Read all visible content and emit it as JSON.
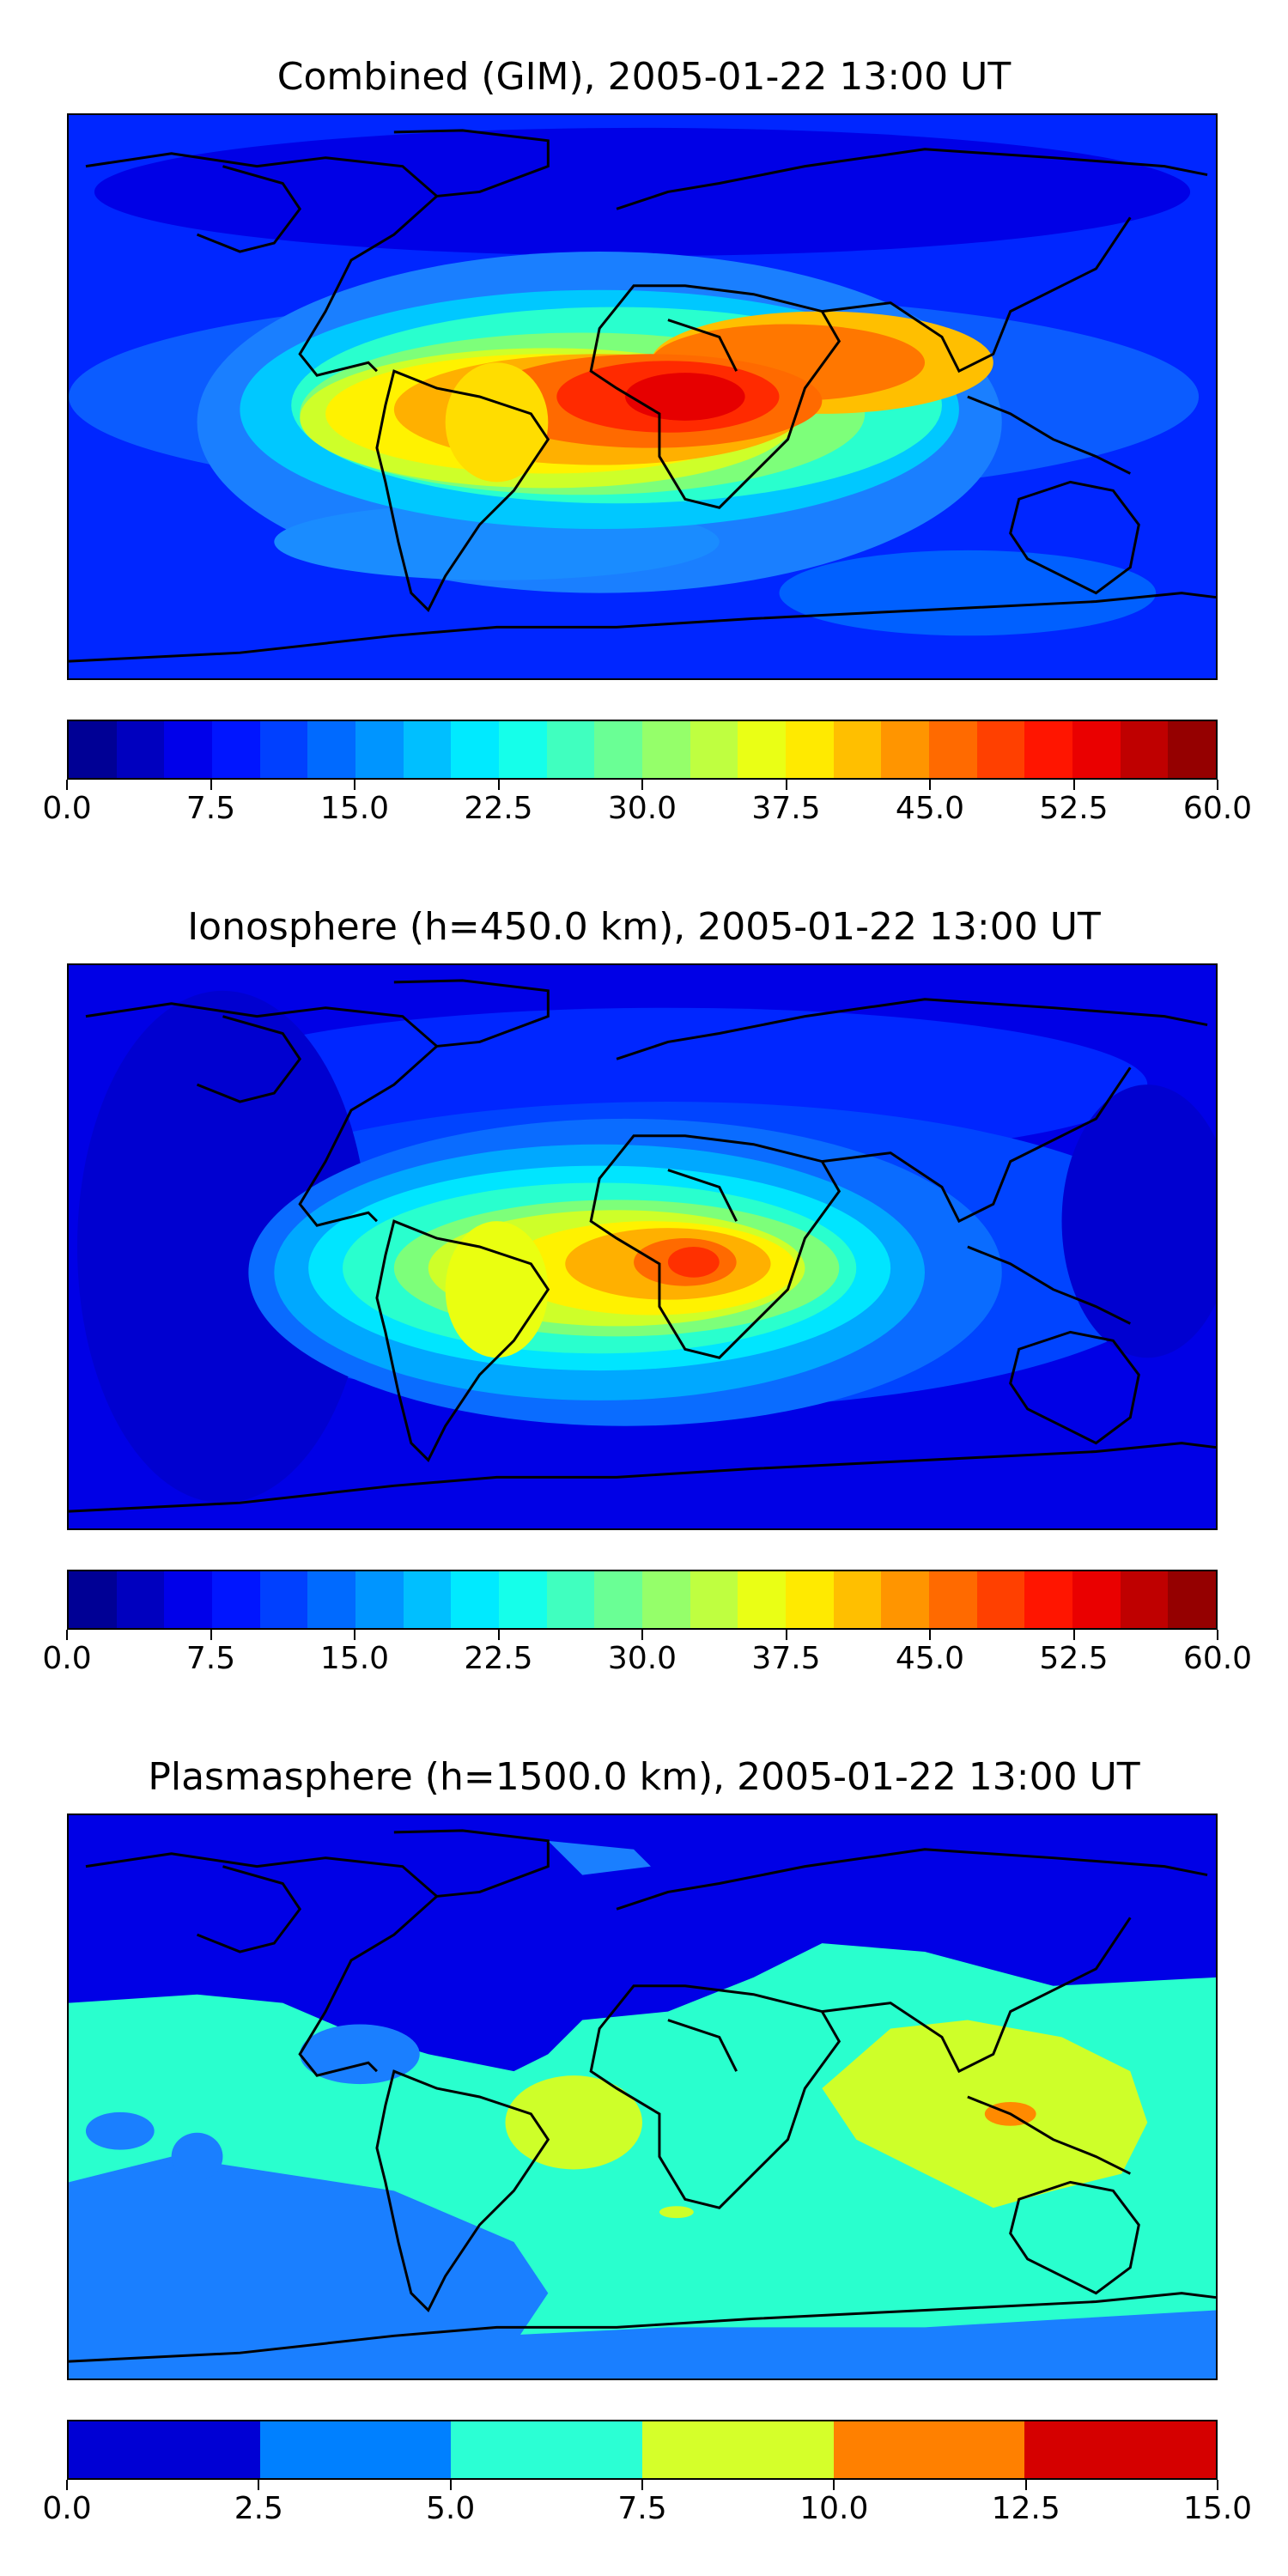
{
  "chart_data": [
    {
      "type": "heatmap",
      "title": "Combined (GIM), 2005-01-22 13:00 UT",
      "basemap": "world-coastlines",
      "colormap": "jet",
      "value_range": [
        0,
        60
      ],
      "levels": 24,
      "colorbar_ticks": [
        "0.0",
        "7.5",
        "15.0",
        "22.5",
        "30.0",
        "37.5",
        "45.0",
        "52.5",
        "60.0"
      ],
      "features": [
        {
          "region": "equatorial Africa / Gulf of Guinea",
          "value": 55
        },
        {
          "region": "Arabian Sea / India",
          "value": 48
        },
        {
          "region": "north-east Brazil",
          "value": 40
        },
        {
          "region": "southern Atlantic",
          "value": 25
        },
        {
          "region": "high latitudes",
          "value": 6
        }
      ]
    },
    {
      "type": "heatmap",
      "title": "Ionosphere  (h=450.0 km), 2005-01-22 13:00 UT",
      "basemap": "world-coastlines",
      "colormap": "jet",
      "value_range": [
        0,
        60
      ],
      "levels": 24,
      "colorbar_ticks": [
        "0.0",
        "7.5",
        "15.0",
        "22.5",
        "30.0",
        "37.5",
        "45.0",
        "52.5",
        "60.0"
      ],
      "features": [
        {
          "region": "central Africa",
          "value": 47
        },
        {
          "region": "north-east Brazil",
          "value": 36
        },
        {
          "region": "Arabian Sea",
          "value": 30
        },
        {
          "region": "Pacific",
          "value": 5
        }
      ]
    },
    {
      "type": "heatmap",
      "title": "Plasmasphere (h=1500.0 km), 2005-01-22 13:00 UT",
      "basemap": "world-coastlines",
      "colormap": "jet",
      "value_range": [
        0,
        15
      ],
      "levels": 6,
      "colorbar_ticks": [
        "0.0",
        "2.5",
        "5.0",
        "7.5",
        "10.0",
        "12.5",
        "15.0"
      ],
      "features": [
        {
          "region": "Indonesia",
          "value": 11
        },
        {
          "region": "Indian Ocean / SE Asia",
          "value": 8.5
        },
        {
          "region": "south Atlantic",
          "value": 8.5
        },
        {
          "region": "southern mid-latitudes",
          "value": 6
        },
        {
          "region": "northern high latitudes",
          "value": 1.5
        }
      ]
    }
  ]
}
